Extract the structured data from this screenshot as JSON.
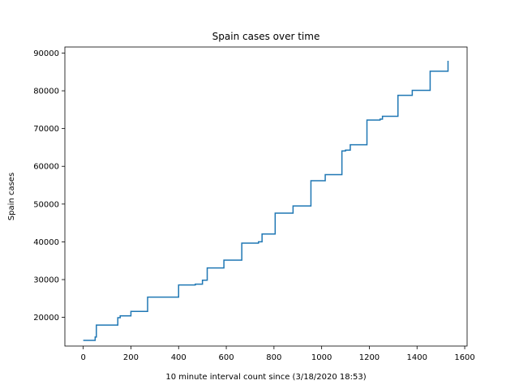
{
  "chart_data": {
    "type": "line",
    "title": "Spain cases over time",
    "xlabel": "10 minute interval count since (3/18/2020 18:53)",
    "ylabel": "Spain cases",
    "xlim": [
      -77,
      1610
    ],
    "ylim": [
      12400,
      91600
    ],
    "xticks": [
      0,
      200,
      400,
      600,
      800,
      1000,
      1200,
      1400,
      1600
    ],
    "xtick_labels": [
      "0",
      "200",
      "400",
      "600",
      "800",
      "1000",
      "1200",
      "1400",
      "1600"
    ],
    "yticks": [
      20000,
      30000,
      40000,
      50000,
      60000,
      70000,
      80000,
      90000
    ],
    "ytick_labels": [
      "20000",
      "30000",
      "40000",
      "50000",
      "60000",
      "70000",
      "80000",
      "90000"
    ],
    "grid": false,
    "line_color": "#1f77b4",
    "series": [
      {
        "step": true,
        "x": [
          0,
          50,
          50,
          55,
          55,
          145,
          145,
          155,
          155,
          200,
          200,
          270,
          270,
          400,
          400,
          470,
          470,
          500,
          500,
          520,
          520,
          590,
          590,
          665,
          665,
          735,
          735,
          750,
          750,
          805,
          805,
          880,
          880,
          955,
          955,
          1015,
          1015,
          1085,
          1085,
          1100,
          1100,
          1120,
          1120,
          1190,
          1190,
          1245,
          1245,
          1255,
          1255,
          1320,
          1320,
          1380,
          1380,
          1455,
          1455,
          1530,
          1530
        ],
        "y": [
          13910,
          13910,
          14800,
          14800,
          17960,
          17960,
          19900,
          19900,
          20400,
          20400,
          21570,
          21570,
          25370,
          25370,
          28570,
          28570,
          28800,
          28800,
          29850,
          29850,
          33090,
          33090,
          35140,
          35140,
          39670,
          39670,
          40000,
          40000,
          42060,
          42060,
          47610,
          47610,
          49510,
          49510,
          56190,
          56190,
          57800,
          57800,
          64060,
          64060,
          64300,
          64300,
          65720,
          65720,
          72250,
          72250,
          72500,
          72500,
          73240,
          73240,
          78800,
          78800,
          80110,
          80110,
          85200,
          85200,
          87960
        ]
      }
    ]
  }
}
